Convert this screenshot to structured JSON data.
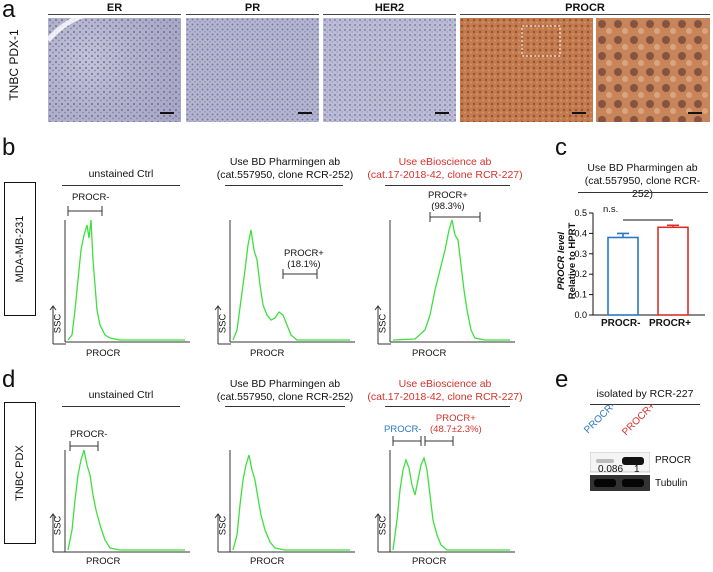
{
  "panel_a": {
    "letter": "a",
    "row_label": "TNBC PDX-1",
    "headers": [
      "ER",
      "PR",
      "HER2",
      "PROCR"
    ]
  },
  "panel_b": {
    "letter": "b",
    "row_label": "MDA-MB-231",
    "titles": [
      {
        "l1": "unstained Ctrl",
        "l2": ""
      },
      {
        "l1": "Use BD Pharmingen ab",
        "l2": "(cat.557950, clone RCR-252)"
      },
      {
        "l1": "Use eBioscience ab",
        "l2": "(cat.17-2018-42, clone RCR-227)"
      }
    ],
    "gates": {
      "g1": "PROCR-",
      "g2_l1": "PROCR+",
      "g2_l2": "(18.1%)",
      "g3_l1": "PROCR+",
      "g3_l2": "(98.3%)"
    },
    "ylabel": "SSC",
    "xlabel": "PROCR"
  },
  "panel_c": {
    "letter": "c",
    "title_l1": "Use BD Pharmingen ab",
    "title_l2": "(cat.557950, clone RCR-252)",
    "ylabel_l1": "PROCR level",
    "ylabel_l2": "Relative to HPRT",
    "sig": "n.s.",
    "ticks": [
      "0.0",
      "0.1",
      "0.2",
      "0.3",
      "0.4",
      "0.5"
    ],
    "cats": [
      "PROCR-",
      "PROCR+"
    ]
  },
  "panel_d": {
    "letter": "d",
    "row_label": "TNBC PDX",
    "titles": [
      {
        "l1": "unstained Ctrl",
        "l2": ""
      },
      {
        "l1": "Use BD Pharmingen ab",
        "l2": "(cat.557950, clone RCR-252)"
      },
      {
        "l1": "Use eBioscience ab",
        "l2": "(cat.17-2018-42, clone RCR-227)"
      }
    ],
    "gates": {
      "g1": "PROCR-",
      "g3_neg": "PROCR-",
      "g3_pos_l1": "PROCR+",
      "g3_pos_l2": "(48.7±2.3%)"
    },
    "ylabel": "SSC",
    "xlabel": "PROCR"
  },
  "panel_e": {
    "letter": "e",
    "title": "isolated by RCR-227",
    "lane1": "PROCR-",
    "lane2": "PROCR+",
    "val1": "0.086",
    "val2": "1",
    "band1": "PROCR",
    "band2": "Tubulin"
  },
  "chart_data": {
    "type": "bar",
    "title": "Use BD Pharmingen ab (cat.557950, clone RCR-252)",
    "ylabel": "PROCR level Relative to HPRT",
    "categories": [
      "PROCR-",
      "PROCR+"
    ],
    "values": [
      0.38,
      0.43
    ],
    "errors": [
      0.02,
      0.01
    ],
    "ylim": [
      0,
      0.5
    ],
    "colors": [
      "#2a78c2",
      "#d8312c"
    ]
  }
}
